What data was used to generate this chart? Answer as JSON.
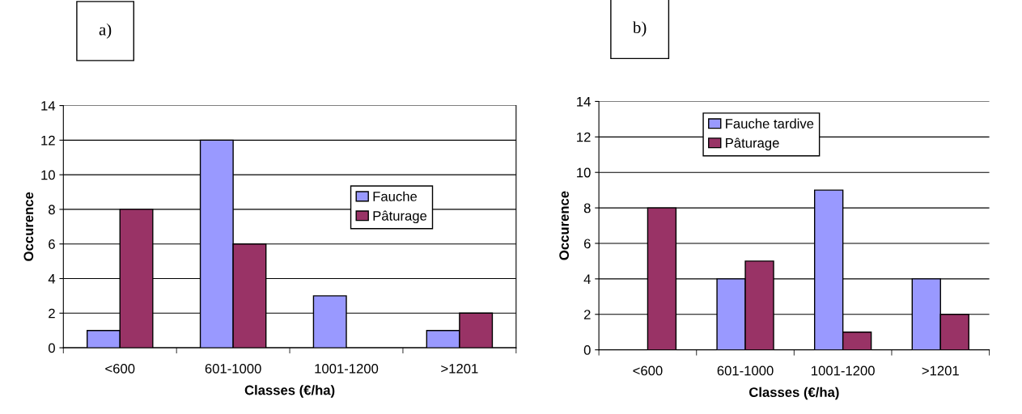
{
  "chart_data": [
    {
      "type": "bar",
      "title": "a)",
      "xlabel": "Classes (€/ha)",
      "ylabel": "Occurence",
      "categories": [
        "<600",
        "601-1000",
        "1001-1200",
        ">1201"
      ],
      "series": [
        {
          "name": "Fauche",
          "color": "#9999ff",
          "values": [
            1,
            12,
            3,
            1
          ]
        },
        {
          "name": "Pâturage",
          "color": "#993366",
          "values": [
            8,
            6,
            null,
            2
          ]
        }
      ],
      "ylim": [
        0,
        14
      ],
      "yticks": [
        0,
        2,
        4,
        6,
        8,
        10,
        12,
        14
      ],
      "grid": "y",
      "legend": "right"
    },
    {
      "type": "bar",
      "title": "b)",
      "xlabel": "Classes (€/ha)",
      "ylabel": "Occurence",
      "categories": [
        "<600",
        "601-1000",
        "1001-1200",
        ">1201"
      ],
      "series": [
        {
          "name": "Fauche tardive",
          "color": "#9999ff",
          "values": [
            null,
            4,
            9,
            4
          ]
        },
        {
          "name": "Pâturage",
          "color": "#993366",
          "values": [
            8,
            5,
            1,
            2
          ]
        }
      ],
      "ylim": [
        0,
        14
      ],
      "yticks": [
        0,
        2,
        4,
        6,
        8,
        10,
        12,
        14
      ],
      "grid": "y",
      "legend": "top left"
    }
  ]
}
